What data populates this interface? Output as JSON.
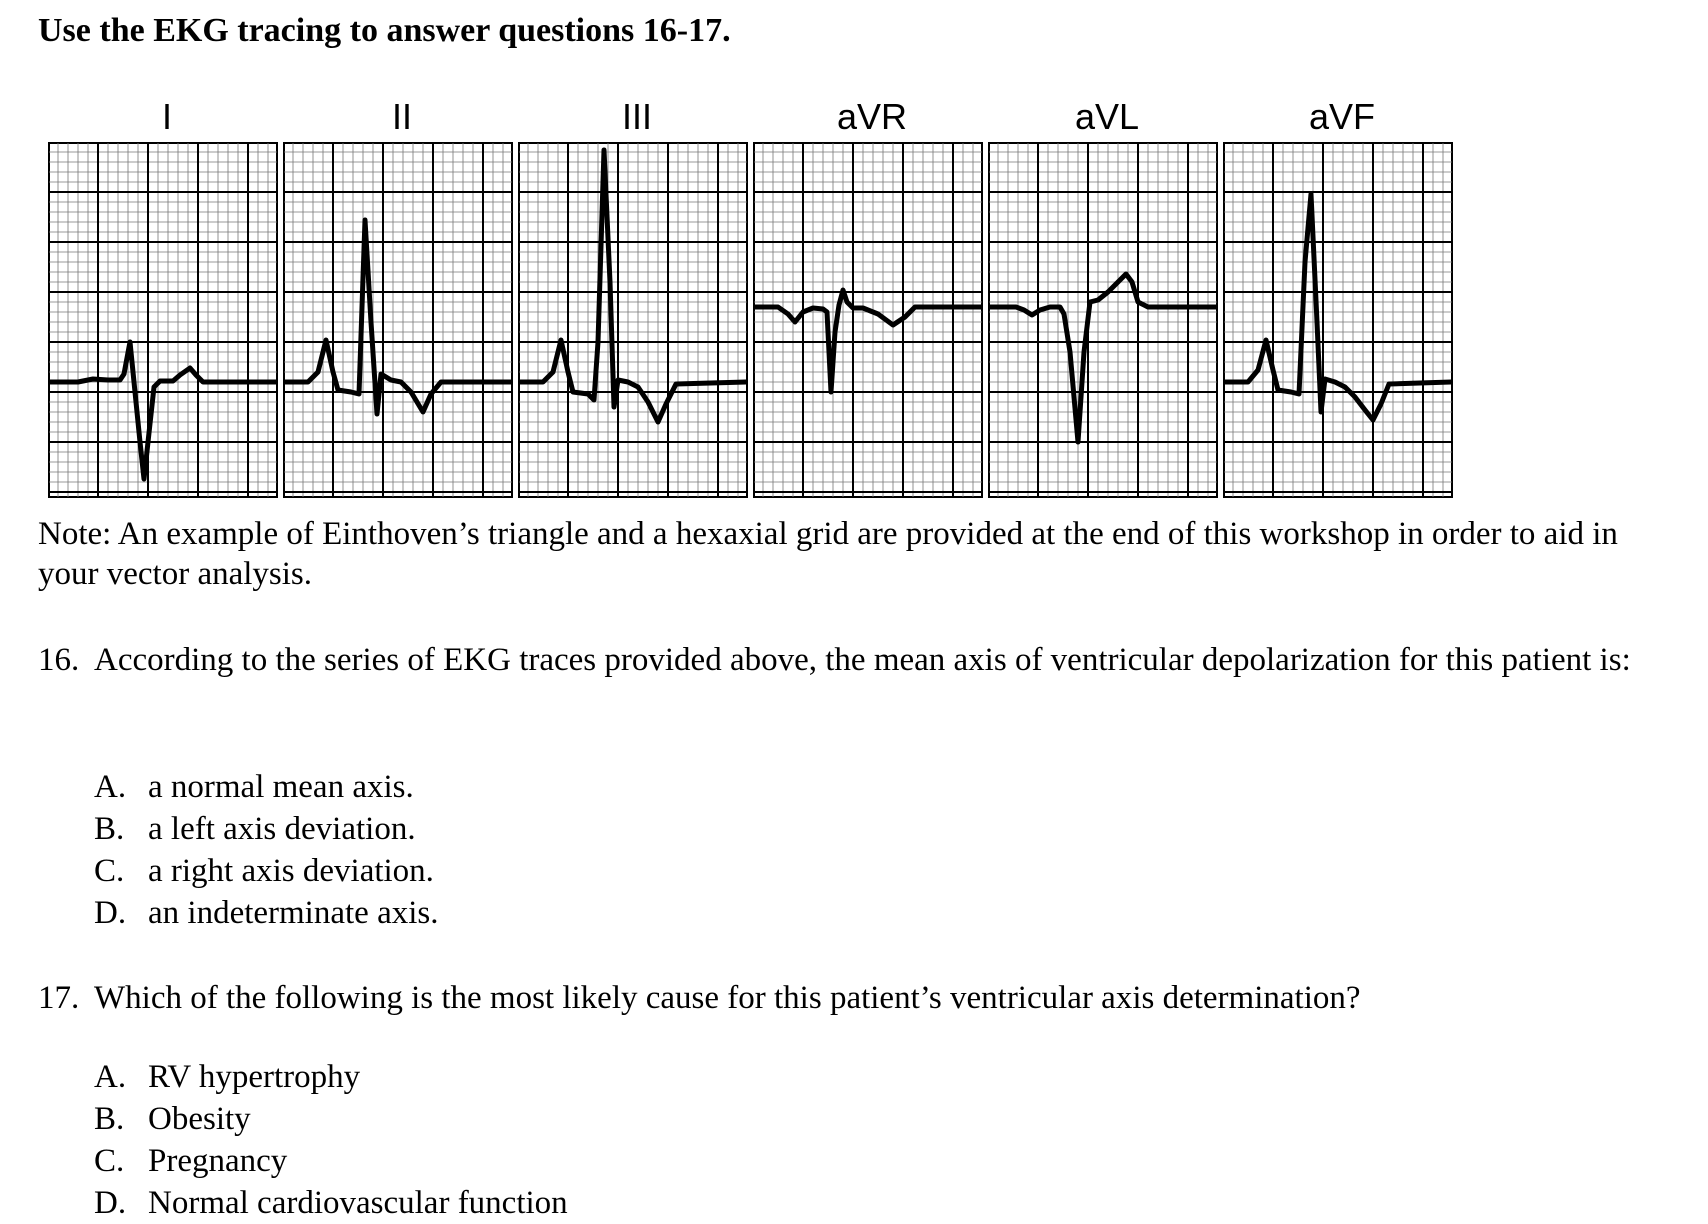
{
  "heading": "Use the EKG tracing to answer questions 16-17.",
  "leads": [
    {
      "label": "I"
    },
    {
      "label": "II"
    },
    {
      "label": "III"
    },
    {
      "label": "aVR"
    },
    {
      "label": "aVL"
    },
    {
      "label": "aVF"
    }
  ],
  "note": "Note: An example of Einthoven’s triangle and a hexaxial grid are provided at the end of this workshop in order to aid in your vector analysis.",
  "q16": {
    "number": "16.",
    "text": "According to the series of EKG traces provided above, the mean axis of ventricular depolarization for this patient is:",
    "options": [
      {
        "letter": "A.",
        "text": "a normal mean axis."
      },
      {
        "letter": "B.",
        "text": "a left axis deviation."
      },
      {
        "letter": "C.",
        "text": "a right axis deviation."
      },
      {
        "letter": "D.",
        "text": "an indeterminate axis."
      }
    ]
  },
  "q17": {
    "number": "17.",
    "text": "Which of the following is the most likely cause for this patient’s ventricular axis determination?",
    "options": [
      {
        "letter": "A.",
        "text": "RV hypertrophy"
      },
      {
        "letter": "B.",
        "text": "Obesity"
      },
      {
        "letter": "C.",
        "text": "Pregnancy"
      },
      {
        "letter": "D.",
        "text": "Normal cardiovascular function"
      }
    ]
  }
}
